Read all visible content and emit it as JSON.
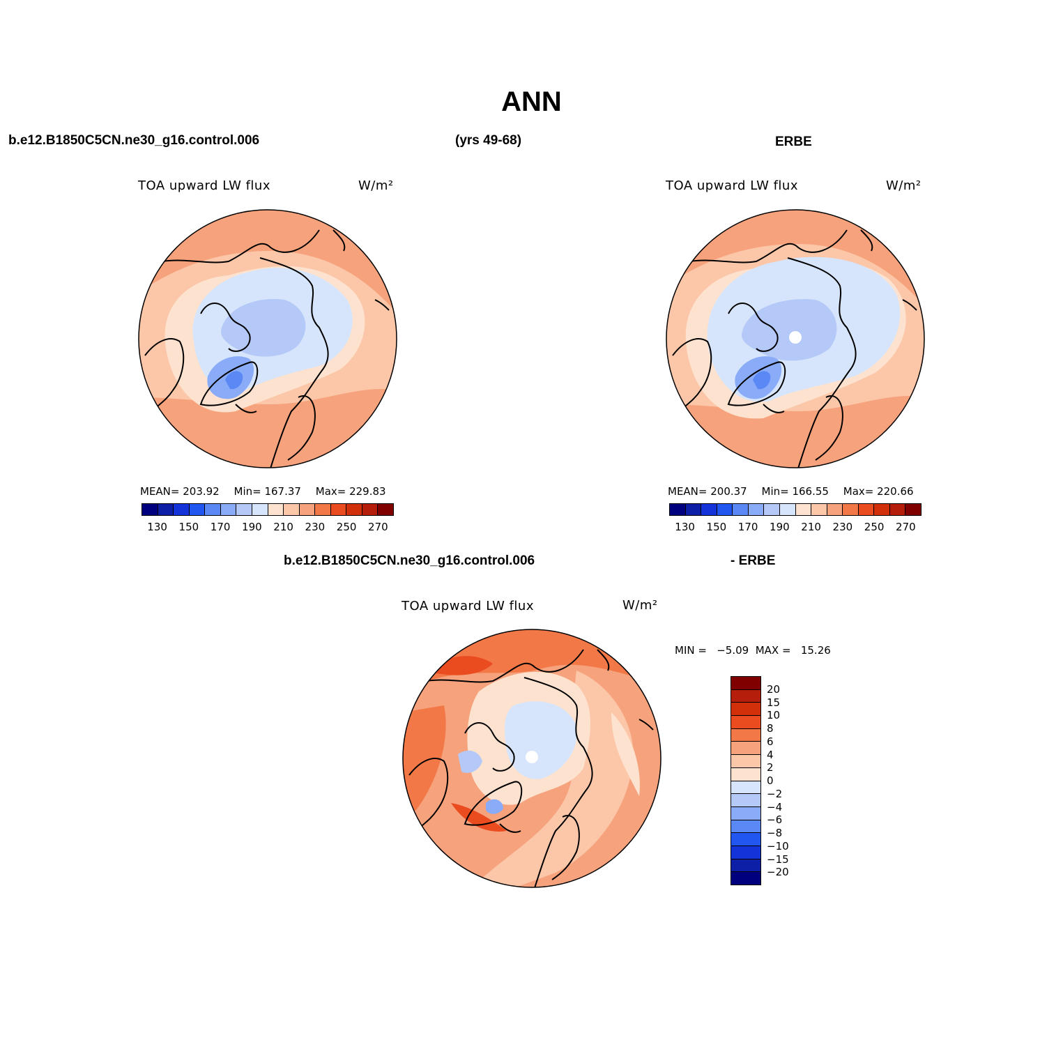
{
  "title": "ANN",
  "header": {
    "case": "b.e12.B1850C5CN.ne30_g16.control.006",
    "years": "(yrs 49-68)",
    "obs": "ERBE"
  },
  "diff_header": {
    "case": "b.e12.B1850C5CN.ne30_g16.control.006",
    "obs": "- ERBE"
  },
  "panels": [
    {
      "title": "TOA upward LW flux",
      "units": "W/m²",
      "mean": "MEAN= 203.92",
      "min": "Min= 167.37",
      "max": "Max= 229.83"
    },
    {
      "title": "TOA upward LW flux",
      "units": "W/m²",
      "mean": "MEAN= 200.37",
      "min": "Min= 166.55",
      "max": "Max= 220.66"
    }
  ],
  "diff_panel": {
    "title": "TOA upward LW flux",
    "units": "W/m²",
    "minmax": "MIN =   −5.09  MAX =   15.26"
  },
  "colorbar_abs": {
    "colors": [
      "#00007f",
      "#0d1fa6",
      "#1433d9",
      "#2157f0",
      "#5a88f5",
      "#8aabf7",
      "#b4c9f7",
      "#d6e5fb",
      "#fde3cf",
      "#fcc6a8",
      "#f6a27c",
      "#f27848",
      "#ea4c20",
      "#d2300b",
      "#b51e0a",
      "#800000"
    ],
    "labels": [
      "130",
      "150",
      "170",
      "190",
      "210",
      "230",
      "250",
      "270"
    ]
  },
  "colorbar_diff": {
    "colors": [
      "#800000",
      "#b51e0a",
      "#d2300b",
      "#ea4c20",
      "#f27848",
      "#f6a27c",
      "#fcc6a8",
      "#fde3cf",
      "#d6e5fb",
      "#b4c9f7",
      "#8aabf7",
      "#5a88f5",
      "#2157f0",
      "#1433d9",
      "#0d1fa6",
      "#00007f"
    ],
    "labels": [
      "20",
      "15",
      "10",
      "8",
      "6",
      "4",
      "2",
      "0",
      "−2",
      "−4",
      "−6",
      "−8",
      "−10",
      "−15",
      "−20"
    ]
  }
}
